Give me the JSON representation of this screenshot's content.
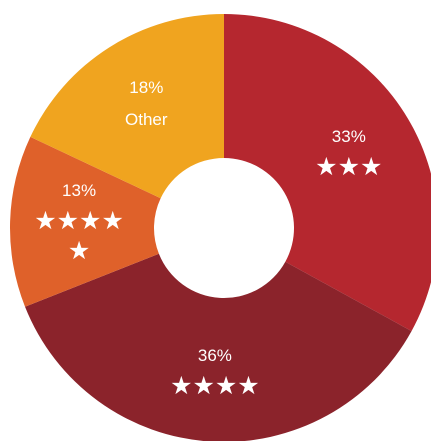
{
  "chart_data": {
    "type": "donut",
    "categories": [
      "★★★",
      "★★★★",
      "★★★★★",
      "Other"
    ],
    "values": [
      33,
      36,
      13,
      18
    ],
    "value_labels": [
      "33%",
      "36%",
      "13%",
      "18%"
    ],
    "colors": [
      "#b5272f",
      "#8b232b",
      "#df612a",
      "#f0a41f"
    ]
  }
}
